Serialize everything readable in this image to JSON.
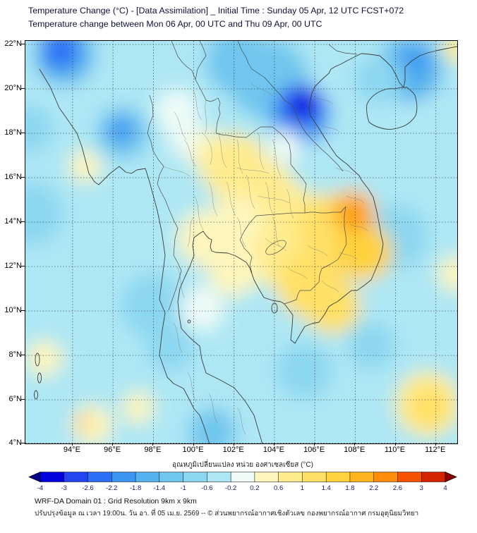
{
  "header": {
    "title_line1": "Temperature Change (°C) - [Data Assimilation] _ Initial Time : Sunday 05 Apr, 12 UTC FCST+072",
    "title_line2": "Temperature change between Mon 06 Apr, 00 UTC and Thu 09 Apr, 00 UTC"
  },
  "map": {
    "x_ticks": [
      "94°E",
      "96°E",
      "98°E",
      "100°E",
      "102°E",
      "104°E",
      "106°E",
      "108°E",
      "110°E",
      "112°E"
    ],
    "y_ticks": [
      "22°N",
      "20°N",
      "18°N",
      "16°N",
      "14°N",
      "12°N",
      "10°N",
      "8°N",
      "6°N",
      "4°N"
    ]
  },
  "colorbar": {
    "label": "อุณหภูมิเปลี่ยนแปลง หน่วย องศาเซลเซียส (°C)",
    "tick_labels": [
      "-4",
      "-3",
      "-2.6",
      "-2.2",
      "-1.8",
      "-1.4",
      "-1",
      "-0.6",
      "-0.2",
      "0.2",
      "0.6",
      "1",
      "1.4",
      "1.8",
      "2.2",
      "2.6",
      "3",
      "4"
    ],
    "segment_colors": [
      "#0202dd",
      "#2244ee",
      "#2a6ff5",
      "#3d95f2",
      "#55b2ee",
      "#6fc6ee",
      "#8cd7f0",
      "#aee7f4",
      "#eefbf6",
      "#fdf5bc",
      "#ffec8f",
      "#ffe066",
      "#ffd23e",
      "#ffb41e",
      "#ff8c0a",
      "#f55200",
      "#d42300"
    ],
    "arrow_left_color": "#00008b",
    "arrow_right_color": "#8b0000"
  },
  "footer": {
    "line1": "WRF-DA Domain 01 : Grid Resolution 9km x 9km",
    "line2": "ปรับปรุงข้อมูล ณ เวลา 19:00น. วัน อา. ที่ 05 เม.ย. 2569 -- © ส่วนพยากรณ์อากาศเชิงตัวเลข กองพยากรณ์อากาศ กรมอุตุนิยมวิทยา"
  },
  "chart_data": {
    "type": "heatmap",
    "title": "Temperature Change (°C) - [Data Assimilation]",
    "initial_time": "Sunday 05 Apr, 12 UTC",
    "forecast_hour": "FCST+072",
    "period": "Mon 06 Apr, 00 UTC to Thu 09 Apr, 00 UTC",
    "units": "°C",
    "x_tick_values": [
      94,
      96,
      98,
      100,
      102,
      104,
      106,
      108,
      110,
      112
    ],
    "y_tick_values": [
      22,
      20,
      18,
      16,
      14,
      12,
      10,
      8,
      6,
      4
    ],
    "lon_range": [
      91.7,
      113.1
    ],
    "lat_range": [
      3.9,
      22.2
    ],
    "levels": [
      -4,
      -3,
      -2.6,
      -2.2,
      -1.8,
      -1.4,
      -1,
      -0.6,
      -0.2,
      0.2,
      0.6,
      1,
      1.4,
      1.8,
      2.2,
      2.6,
      3,
      4
    ],
    "background_value": -0.4,
    "notable_anomalies": [
      {
        "region": "northern Vietnam",
        "lon": 105.4,
        "lat": 19.3,
        "value": -3.6
      },
      {
        "region": "northwest corner (Myanmar)",
        "lon": 93.4,
        "lat": 21.7,
        "value": -2.3
      },
      {
        "region": "NW Thailand / Myanmar border",
        "lon": 96.4,
        "lat": 18.1,
        "value": -2.1
      },
      {
        "region": "Gulf of Tonkin / S China coast",
        "lon": 110.9,
        "lat": 21.3,
        "value": -2.0
      },
      {
        "region": "S Laos / central Vietnam coast",
        "lon": 108.0,
        "lat": 14.4,
        "value": 2.4
      },
      {
        "region": "NE Thailand - Laos - Cambodia",
        "lon": 104.0,
        "lat": 14.0,
        "value": 1.0
      },
      {
        "region": "southeast corner of map",
        "lon": 111.7,
        "lat": 5.7,
        "value": 1.3
      }
    ],
    "field_blobs": [
      {
        "lon": 103.72,
        "lat": 20.41,
        "r": 2.0,
        "v": -1.2
      },
      {
        "lon": 102.15,
        "lat": 21.21,
        "r": 1.6,
        "v": -1.2
      },
      {
        "lon": 105.3,
        "lat": 18.83,
        "r": 1.5,
        "v": -1.9
      },
      {
        "lon": 93.58,
        "lat": 21.53,
        "r": 1.5,
        "v": -1.5
      },
      {
        "lon": 96.49,
        "lat": 18.03,
        "r": 1.3,
        "v": -1.3
      },
      {
        "lon": 110.72,
        "lat": 20.89,
        "r": 1.6,
        "v": -1.6
      },
      {
        "lon": 109.14,
        "lat": 20.41,
        "r": 1.2,
        "v": -0.9
      },
      {
        "lon": 91.83,
        "lat": 18.19,
        "r": 1.2,
        "v": -0.9
      },
      {
        "lon": 91.94,
        "lat": 14.38,
        "r": 1.6,
        "v": -0.9
      },
      {
        "lon": 97.95,
        "lat": 10.25,
        "r": 1.6,
        "v": -0.7
      },
      {
        "lon": 98.83,
        "lat": 8.35,
        "r": 1.2,
        "v": -0.7
      },
      {
        "lon": 100.93,
        "lat": 4.54,
        "r": 1.2,
        "v": -1.1
      },
      {
        "lon": 105.47,
        "lat": 7.3,
        "r": 1.4,
        "v": -0.8
      },
      {
        "lon": 108.79,
        "lat": 8.44,
        "r": 1.2,
        "v": -0.9
      },
      {
        "lon": 110.02,
        "lat": 13.33,
        "r": 1.6,
        "v": -0.9
      },
      {
        "lon": 99.18,
        "lat": 18.99,
        "r": 1.1,
        "v": -0.1
      },
      {
        "lon": 99.7,
        "lat": 17.72,
        "r": 0.9,
        "v": -0.1
      },
      {
        "lon": 104.53,
        "lat": 17.4,
        "r": 0.8,
        "v": 0.0
      },
      {
        "lon": 100.4,
        "lat": 10.1,
        "r": 1.1,
        "v": -0.15
      },
      {
        "lon": 103.2,
        "lat": 8.83,
        "r": 1.2,
        "v": -0.3
      },
      {
        "lon": 100.58,
        "lat": 13.27,
        "r": 1.4,
        "v": 0.25
      },
      {
        "lon": 94.63,
        "lat": 16.51,
        "r": 0.8,
        "v": 0.25
      },
      {
        "lon": 92.6,
        "lat": 7.87,
        "r": 0.9,
        "v": 0.35
      },
      {
        "lon": 97.25,
        "lat": 5.65,
        "r": 0.8,
        "v": 0.3
      },
      {
        "lon": 112.99,
        "lat": 11.68,
        "r": 0.9,
        "v": 0.4
      },
      {
        "lon": 111.59,
        "lat": 5.81,
        "r": 1.6,
        "v": 0.6
      },
      {
        "lon": 100.93,
        "lat": 17.08,
        "r": 1.1,
        "v": 0.5
      },
      {
        "lon": 102.08,
        "lat": 16.45,
        "r": 1.7,
        "v": 0.8
      },
      {
        "lon": 103.37,
        "lat": 15.33,
        "r": 1.7,
        "v": 0.9
      },
      {
        "lon": 104.77,
        "lat": 14.22,
        "r": 1.6,
        "v": 0.9
      },
      {
        "lon": 102.15,
        "lat": 13.9,
        "r": 1.4,
        "v": 0.4
      },
      {
        "lon": 104.42,
        "lat": 12.48,
        "r": 1.6,
        "v": 0.8
      },
      {
        "lon": 101.98,
        "lat": 11.84,
        "r": 1.3,
        "v": 0.5
      },
      {
        "lon": 105.82,
        "lat": 11.21,
        "r": 1.7,
        "v": 1.1
      },
      {
        "lon": 106.87,
        "lat": 10.25,
        "r": 1.4,
        "v": 1.2
      },
      {
        "lon": 106.87,
        "lat": 13.75,
        "r": 1.7,
        "v": 1.2
      },
      {
        "lon": 108.45,
        "lat": 12.64,
        "r": 1.4,
        "v": 1.5
      },
      {
        "lon": 113.16,
        "lat": 21.91,
        "r": 0.8,
        "v": 0.9
      },
      {
        "lon": 94.98,
        "lat": 4.86,
        "r": 1.0,
        "v": 0.5
      },
      {
        "lon": 111.66,
        "lat": 5.65,
        "r": 1.05,
        "v": 1.3
      },
      {
        "lon": 105.37,
        "lat": 19.3,
        "r": 1.0,
        "v": -2.7
      },
      {
        "lon": 93.41,
        "lat": 21.72,
        "r": 0.9,
        "v": -2.3
      },
      {
        "lon": 96.38,
        "lat": 18.13,
        "r": 0.65,
        "v": -2.1
      },
      {
        "lon": 110.96,
        "lat": 21.27,
        "r": 0.6,
        "v": -2.0
      },
      {
        "lon": 105.44,
        "lat": 19.24,
        "r": 0.55,
        "v": -3.6
      },
      {
        "lon": 107.92,
        "lat": 14.45,
        "r": 1.1,
        "v": 1.9
      },
      {
        "lon": 108.02,
        "lat": 14.35,
        "r": 0.5,
        "v": 2.4
      },
      {
        "lon": 94.53,
        "lat": 4.99,
        "r": 0.32,
        "v": 1.9
      }
    ]
  }
}
